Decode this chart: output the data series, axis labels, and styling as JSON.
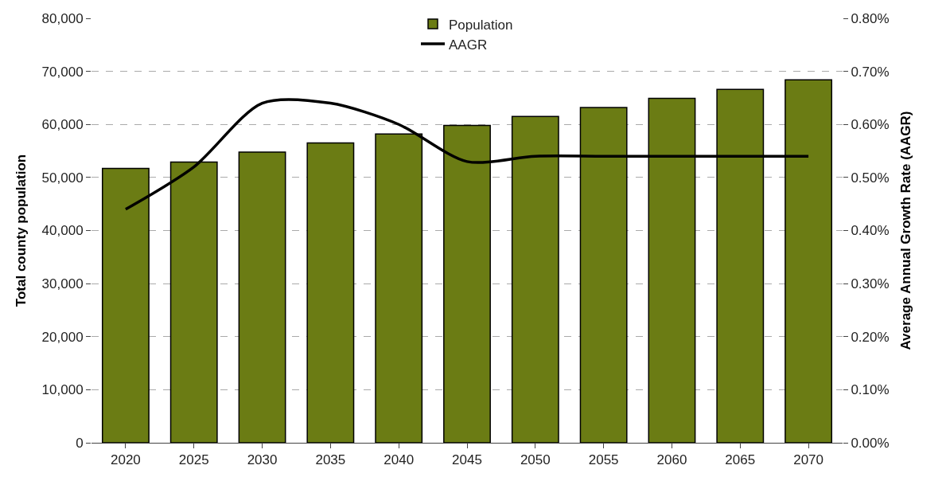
{
  "chart_data": {
    "type": "bar",
    "categories": [
      "2020",
      "2025",
      "2030",
      "2035",
      "2040",
      "2045",
      "2050",
      "2055",
      "2060",
      "2065",
      "2070"
    ],
    "series": [
      {
        "name": "Population",
        "color": "#6b7c14",
        "values": [
          51700,
          52900,
          54800,
          56500,
          58200,
          59800,
          61500,
          63200,
          64900,
          66600,
          68400
        ]
      },
      {
        "name": "AAGR",
        "type": "line",
        "axis": "y2",
        "color": "#000000",
        "values": [
          0.44,
          0.52,
          0.64,
          0.64,
          0.6,
          0.53,
          0.54,
          0.54,
          0.54,
          0.54,
          0.54
        ]
      }
    ],
    "ylabel": "Total county population",
    "y2label": "Average Annual Growth Rate (AAGR)",
    "ylim": [
      0,
      80000
    ],
    "yticks": [
      {
        "value": 0,
        "label": "0"
      },
      {
        "value": 10000,
        "label": "10,000"
      },
      {
        "value": 20000,
        "label": "20,000"
      },
      {
        "value": 30000,
        "label": "30,000"
      },
      {
        "value": 40000,
        "label": "40,000"
      },
      {
        "value": 50000,
        "label": "50,000"
      },
      {
        "value": 60000,
        "label": "60,000"
      },
      {
        "value": 70000,
        "label": "70,000"
      },
      {
        "value": 80000,
        "label": "80,000"
      }
    ],
    "y2lim": [
      0,
      0.8
    ],
    "y2ticks": [
      {
        "value": 0,
        "label": "0.00%"
      },
      {
        "value": 0.1,
        "label": "0.10%"
      },
      {
        "value": 0.2,
        "label": "0.20%"
      },
      {
        "value": 0.3,
        "label": "0.30%"
      },
      {
        "value": 0.4,
        "label": "0.40%"
      },
      {
        "value": 0.5,
        "label": "0.50%"
      },
      {
        "value": 0.6,
        "label": "0.60%"
      },
      {
        "value": 0.7,
        "label": "0.70%"
      },
      {
        "value": 0.8,
        "label": "0.80%"
      }
    ],
    "grid": "y",
    "legend": "top",
    "marker": "none",
    "line_style": "solid"
  }
}
